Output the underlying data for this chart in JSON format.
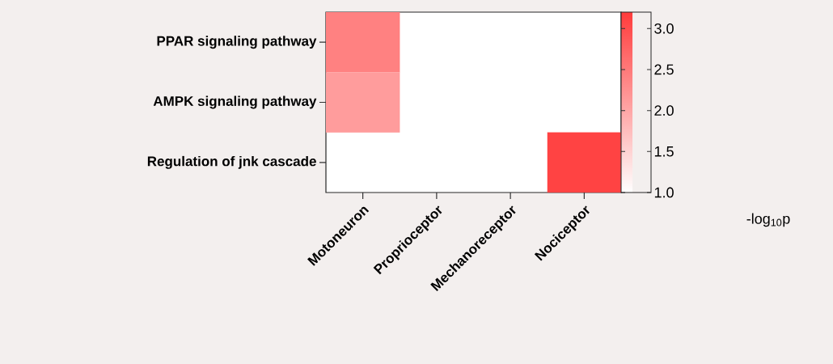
{
  "chart_data": {
    "type": "heatmap",
    "categories": [
      "Motoneuron",
      "Proprioceptor",
      "Mechanoreceptor",
      "Nociceptor"
    ],
    "y_categories": [
      "PPAR signaling pathway",
      "AMPK signaling pathway",
      "Regulation of jnk cascade"
    ],
    "cells": [
      [
        2.4,
        null,
        null,
        null
      ],
      [
        2.1,
        null,
        null,
        null
      ],
      [
        null,
        null,
        null,
        3.1
      ]
    ],
    "clim": [
      1.0,
      3.2
    ],
    "cticks": [
      {
        "value": 1.0,
        "label": "1.0"
      },
      {
        "value": 1.5,
        "label": "1.5"
      },
      {
        "value": 2.0,
        "label": "2.0"
      },
      {
        "value": 2.5,
        "label": "2.5"
      },
      {
        "value": 3.0,
        "label": "3.0"
      }
    ],
    "clabel": "-log$_{10}$p"
  }
}
